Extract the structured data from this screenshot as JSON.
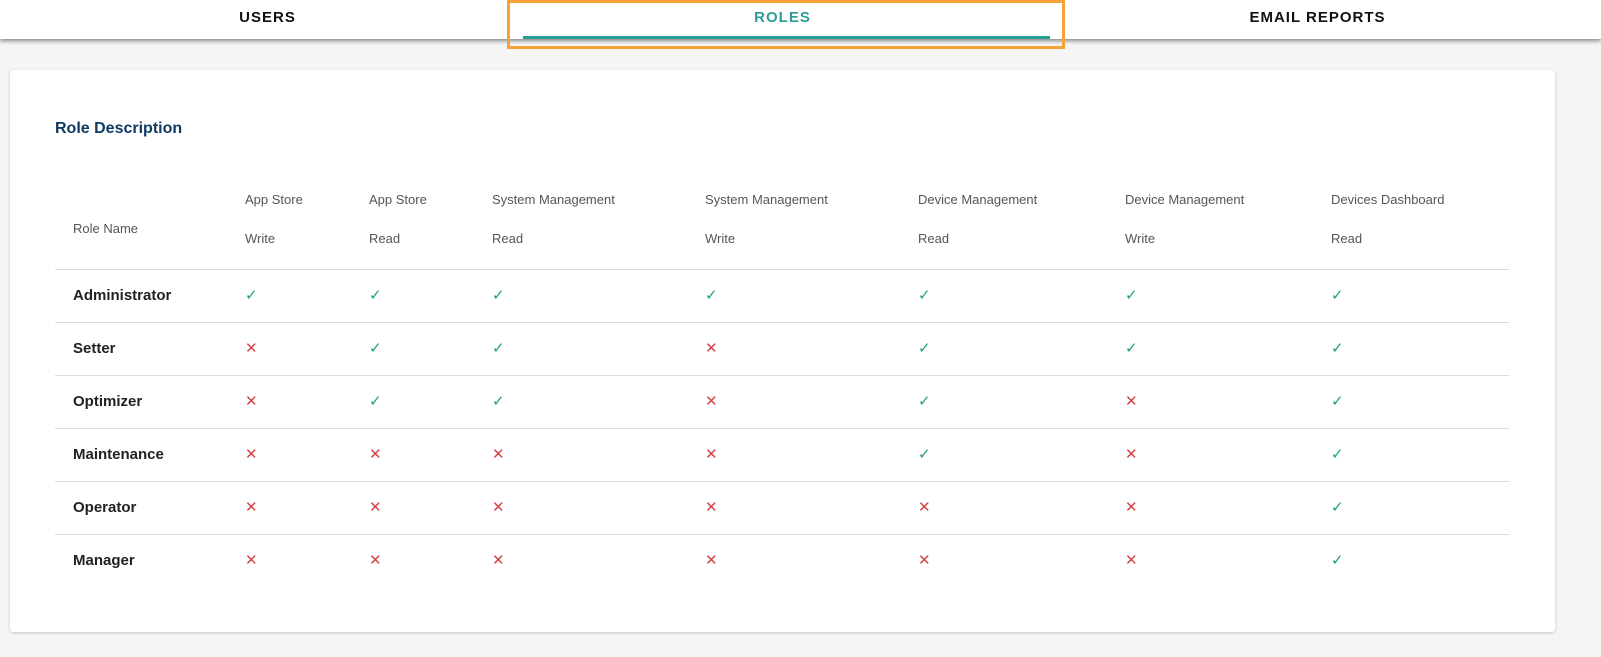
{
  "tabs": [
    {
      "label": "USERS",
      "active": false
    },
    {
      "label": "ROLES",
      "active": true
    },
    {
      "label": "EMAIL REPORTS",
      "active": false
    }
  ],
  "card": {
    "title": "Role Description"
  },
  "table": {
    "role_header": "Role Name",
    "columns": [
      {
        "line1": "App Store",
        "line2": "Write"
      },
      {
        "line1": "App Store",
        "line2": "Read"
      },
      {
        "line1": "System Management",
        "line2": "Read"
      },
      {
        "line1": "System Management",
        "line2": "Write"
      },
      {
        "line1": "Device Management",
        "line2": "Read"
      },
      {
        "line1": "Device Management",
        "line2": "Write"
      },
      {
        "line1": "Devices Dashboard",
        "line2": "Read"
      }
    ],
    "rows": [
      {
        "role": "Administrator",
        "perms": [
          true,
          true,
          true,
          true,
          true,
          true,
          true
        ]
      },
      {
        "role": "Setter",
        "perms": [
          false,
          true,
          true,
          false,
          true,
          true,
          true
        ]
      },
      {
        "role": "Optimizer",
        "perms": [
          false,
          true,
          true,
          false,
          true,
          false,
          true
        ]
      },
      {
        "role": "Maintenance",
        "perms": [
          false,
          false,
          false,
          false,
          true,
          false,
          true
        ]
      },
      {
        "role": "Operator",
        "perms": [
          false,
          false,
          false,
          false,
          false,
          false,
          true
        ]
      },
      {
        "role": "Manager",
        "perms": [
          false,
          false,
          false,
          false,
          false,
          false,
          true
        ]
      }
    ]
  },
  "icons": {
    "granted": "check-icon",
    "denied": "cross-icon"
  },
  "colors": {
    "accent": "#2a9d94",
    "title": "#0f3a63",
    "granted": "#1fa36b",
    "denied": "#d0454a",
    "highlight": "#f7a239"
  }
}
